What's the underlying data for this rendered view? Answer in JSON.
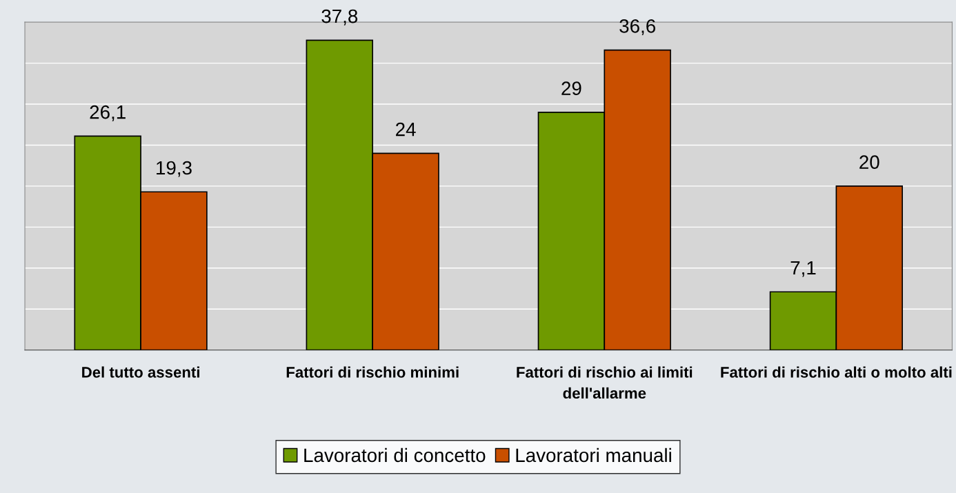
{
  "chart_data": {
    "type": "bar",
    "categories": [
      "Del tutto assenti",
      "Fattori di rischio minimi",
      "Fattori di rischio ai limiti dell'allarme",
      "Fattori di rischio alti o molto alti"
    ],
    "series": [
      {
        "name": "Lavoratori di concetto",
        "color": "#6f9a00",
        "values": [
          26.1,
          37.8,
          29,
          7.1
        ],
        "value_labels": [
          "26,1",
          "37,8",
          "29",
          "7,1"
        ]
      },
      {
        "name": "Lavoratori manuali",
        "color": "#c94f00",
        "values": [
          19.3,
          24,
          36.6,
          20
        ],
        "value_labels": [
          "19,3",
          "24",
          "36,6",
          "20"
        ]
      }
    ],
    "ylim": [
      0,
      40
    ],
    "yticks": [
      {
        "value": 0,
        "label": null
      },
      {
        "value": 5,
        "label": null
      },
      {
        "value": 10,
        "label": null
      },
      {
        "value": 15,
        "label": null
      },
      {
        "value": 20,
        "label": null
      },
      {
        "value": 25,
        "label": null
      },
      {
        "value": 30,
        "label": null
      },
      {
        "value": 35,
        "label": null
      },
      {
        "value": 40,
        "label": null
      }
    ],
    "tick_labels": "x",
    "grid": "y",
    "legend": "bottom"
  }
}
